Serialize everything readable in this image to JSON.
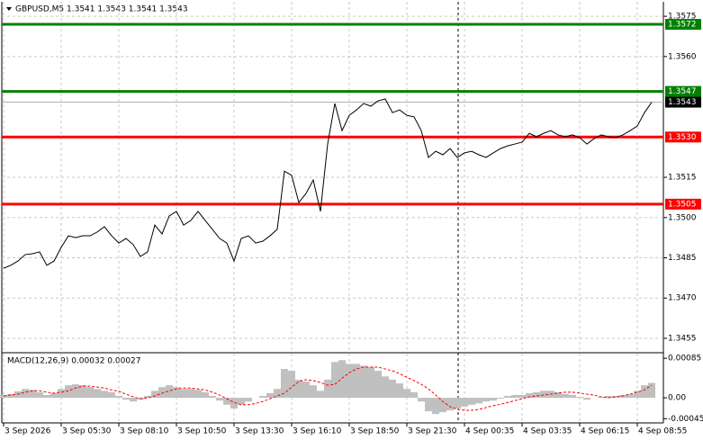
{
  "chart_data": [
    {
      "type": "line",
      "title": "GBPUSD,M5  1.3541 1.3543 1.3541 1.3543",
      "values": [
        1.34811,
        1.34822,
        1.34838,
        1.34862,
        1.34865,
        1.34872,
        1.34822,
        1.34838,
        1.34889,
        1.34932,
        1.34925,
        1.34932,
        1.34932,
        1.34946,
        1.34966,
        1.34932,
        1.34905,
        1.34922,
        1.34899,
        1.34855,
        1.34872,
        1.34972,
        1.34939,
        1.35006,
        1.35023,
        1.34972,
        1.34989,
        1.35023,
        1.34989,
        1.34956,
        1.34922,
        1.34905,
        1.34838,
        1.34922,
        1.34932,
        1.34905,
        1.34912,
        1.34932,
        1.34956,
        1.35173,
        1.35157,
        1.35056,
        1.3509,
        1.3514,
        1.35023,
        1.35274,
        1.35425,
        1.35324,
        1.35381,
        1.35401,
        1.35425,
        1.35415,
        1.35435,
        1.35442,
        1.35391,
        1.35401,
        1.35381,
        1.35375,
        1.35324,
        1.35224,
        1.35247,
        1.35234,
        1.35257,
        1.35224,
        1.35241,
        1.35247,
        1.35234,
        1.35224,
        1.35241,
        1.35257,
        1.35267,
        1.35274,
        1.35281,
        1.35314,
        1.35301,
        1.35314,
        1.35324,
        1.35308,
        1.35301,
        1.35308,
        1.35298,
        1.35274,
        1.35294,
        1.35308,
        1.35301,
        1.35298,
        1.35308,
        1.35324,
        1.35341,
        1.35391,
        1.3543
      ],
      "color": "#000000",
      "ylim": [
        1.34503,
        1.35804
      ],
      "yticks": [
        1.3575,
        {
          "value": 1.356,
          "label": "1.3560"
        },
        1.3515,
        {
          "value": 1.35,
          "label": "1.3500"
        },
        1.3485,
        {
          "value": 1.347,
          "label": "1.3470"
        },
        1.3455
      ],
      "xlim": [
        -0.25,
        91.625
      ],
      "xticks": [
        {
          "value": 0,
          "label": "3 Sep 2026"
        },
        {
          "value": 8,
          "label": "3 Sep 05:30"
        },
        {
          "value": 16,
          "label": "3 Sep 08:10"
        },
        {
          "value": 24,
          "label": "3 Sep 10:50"
        },
        {
          "value": 32,
          "label": "3 Sep 13:30"
        },
        {
          "value": 40,
          "label": "3 Sep 16:10"
        },
        {
          "value": 48,
          "label": "3 Sep 18:50"
        },
        {
          "value": 56,
          "label": "3 Sep 21:30"
        },
        {
          "value": 64,
          "label": "4 Sep 00:35"
        },
        {
          "value": 72,
          "label": "4 Sep 03:35"
        },
        {
          "value": 80,
          "label": "4 Sep 06:15"
        },
        {
          "value": 88,
          "label": "4 Sep 08:55"
        }
      ],
      "grid": true,
      "levels": [
        {
          "value": 1.3572,
          "color": "#008000"
        },
        {
          "value": 1.3547,
          "color": "#008000"
        },
        {
          "value": {
            "value": 1.353,
            "label": "1.3530"
          },
          "color": "#ff0000"
        },
        {
          "value": 1.3505,
          "color": "#ff0000"
        }
      ],
      "current_price": 1.3543
    },
    {
      "type": "bar",
      "title": "MACD(12,26,9) 0.00032 0.00027",
      "ylim": [
        -0.00054,
        0.00095
      ],
      "yticks": [
        0.00085,
        {
          "value": 0,
          "label": "0.00"
        },
        -0.00045
      ],
      "series": [
        {
          "type": "bar",
          "color": "#c0c0c0",
          "values": [
            6e-05,
            8e-05,
            0.00014,
            0.00019,
            0.00017,
            0.00012,
            6e-05,
            0.0001,
            0.00019,
            0.00027,
            0.00029,
            0.00027,
            0.00023,
            0.00019,
            0.00015,
            0.00012,
            4e-05,
            -4e-05,
            -8e-05,
            -4e-05,
            4e-05,
            0.00015,
            0.00023,
            0.00027,
            0.00023,
            0.00019,
            0.00019,
            0.00017,
            0.00012,
            4e-05,
            -6e-05,
            -0.00015,
            -0.00023,
            -0.00015,
            -8e-05,
            0,
            4e-05,
            0.0001,
            0.00019,
            0.00062,
            0.00058,
            0.00039,
            0.00035,
            0.00027,
            0.00015,
            0.00039,
            0.00077,
            0.00081,
            0.00073,
            0.00073,
            0.00069,
            0.00066,
            0.00058,
            0.00046,
            0.00039,
            0.00031,
            0.00019,
            0.00012,
            -8e-05,
            -0.00029,
            -0.00035,
            -0.00031,
            -0.00027,
            -0.00023,
            -0.00019,
            -0.00015,
            -0.00012,
            -8e-05,
            -6e-05,
            -2e-05,
            4e-05,
            6e-05,
            6e-05,
            0.0001,
            0.00012,
            0.00015,
            0.00015,
            0.00012,
            8e-05,
            6e-05,
            2e-05,
            -4e-05,
            0,
            2e-05,
            4e-05,
            4e-05,
            6e-05,
            8e-05,
            0.00015,
            0.00027,
            0.00032
          ]
        },
        {
          "type": "line",
          "color": "#ff0000",
          "values": [
            4e-05,
            6e-05,
            8e-05,
            0.00012,
            0.00015,
            0.00015,
            0.00012,
            0.0001,
            0.00012,
            0.00015,
            0.00021,
            0.00025,
            0.00025,
            0.00023,
            0.00021,
            0.00017,
            0.00014,
            8e-05,
            2e-05,
            -2e-05,
            0,
            4e-05,
            0.0001,
            0.00015,
            0.00019,
            0.00021,
            0.00021,
            0.00019,
            0.00017,
            0.00012,
            6e-05,
            -2e-05,
            -0.0001,
            -0.00015,
            -0.00015,
            -0.00012,
            -8e-05,
            -2e-05,
            4e-05,
            0.0001,
            0.00023,
            0.00035,
            0.00039,
            0.00037,
            0.00033,
            0.00027,
            0.00029,
            0.00042,
            0.00054,
            0.00062,
            0.00066,
            0.00066,
            0.00066,
            0.00062,
            0.00058,
            0.00052,
            0.00044,
            0.00037,
            0.00029,
            0.00019,
            6e-05,
            -8e-05,
            -0.00019,
            -0.00025,
            -0.00027,
            -0.00027,
            -0.00025,
            -0.00021,
            -0.00017,
            -0.00014,
            -0.0001,
            -6e-05,
            -2e-05,
            2e-05,
            4e-05,
            6e-05,
            8e-05,
            0.0001,
            0.00012,
            0.00012,
            0.0001,
            8e-05,
            6e-05,
            2e-05,
            0,
            2e-05,
            4e-05,
            8e-05,
            0.00012,
            0.00017,
            0.00027
          ]
        }
      ]
    }
  ]
}
